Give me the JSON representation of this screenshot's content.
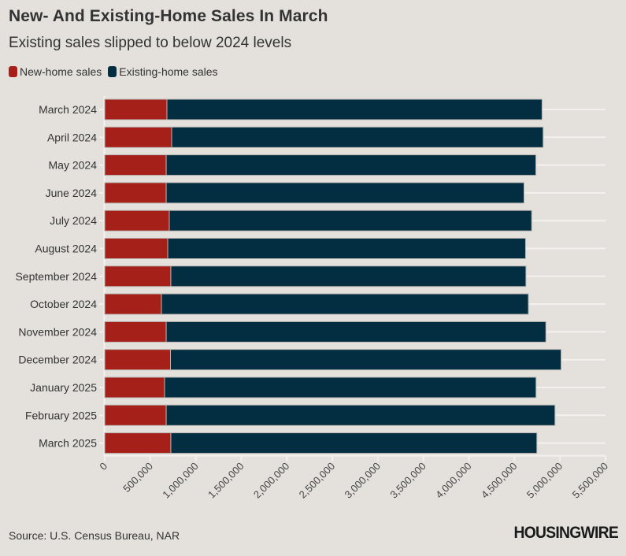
{
  "header": {
    "title": "New- And Existing-Home Sales In March",
    "subtitle": "Existing sales slipped to below 2024 levels"
  },
  "footer": {
    "source": "Source: U.S. Census Bureau, NAR",
    "logo": "HOUSINGWIRE"
  },
  "chart_data": {
    "type": "bar",
    "orientation": "horizontal",
    "stacked": true,
    "title": "New- And Existing-Home Sales In March",
    "subtitle": "Existing sales slipped to below 2024 levels",
    "xlabel": "",
    "ylabel": "",
    "xlim": [
      0,
      5500000
    ],
    "grid": true,
    "legend_position": "top-left",
    "categories": [
      "March 2024",
      "April 2024",
      "May 2024",
      "June 2024",
      "July 2024",
      "August 2024",
      "September 2024",
      "October 2024",
      "November 2024",
      "December 2024",
      "January 2025",
      "February 2025",
      "March 2025"
    ],
    "x_ticks": [
      0,
      500000,
      1000000,
      1500000,
      2000000,
      2500000,
      3000000,
      3500000,
      4000000,
      4500000,
      5000000,
      5500000
    ],
    "x_tick_labels": [
      "0",
      "500,000",
      "1,000,000",
      "1,500,000",
      "2,000,000",
      "2,500,000",
      "3,000,000",
      "3,500,000",
      "4,000,000",
      "4,500,000",
      "5,000,000",
      "5,500,000"
    ],
    "series": [
      {
        "name": "New-home sales",
        "color": "#a52019",
        "values": [
          683000,
          735000,
          675000,
          675000,
          709000,
          692000,
          726000,
          623000,
          675000,
          722000,
          657000,
          675000,
          726000
        ]
      },
      {
        "name": "Existing-home sales",
        "color": "#032d40",
        "values": [
          4120000,
          4080000,
          4060000,
          3930000,
          3980000,
          3930000,
          3900000,
          4030000,
          4170000,
          4290000,
          4080000,
          4270000,
          4020000
        ]
      }
    ]
  }
}
